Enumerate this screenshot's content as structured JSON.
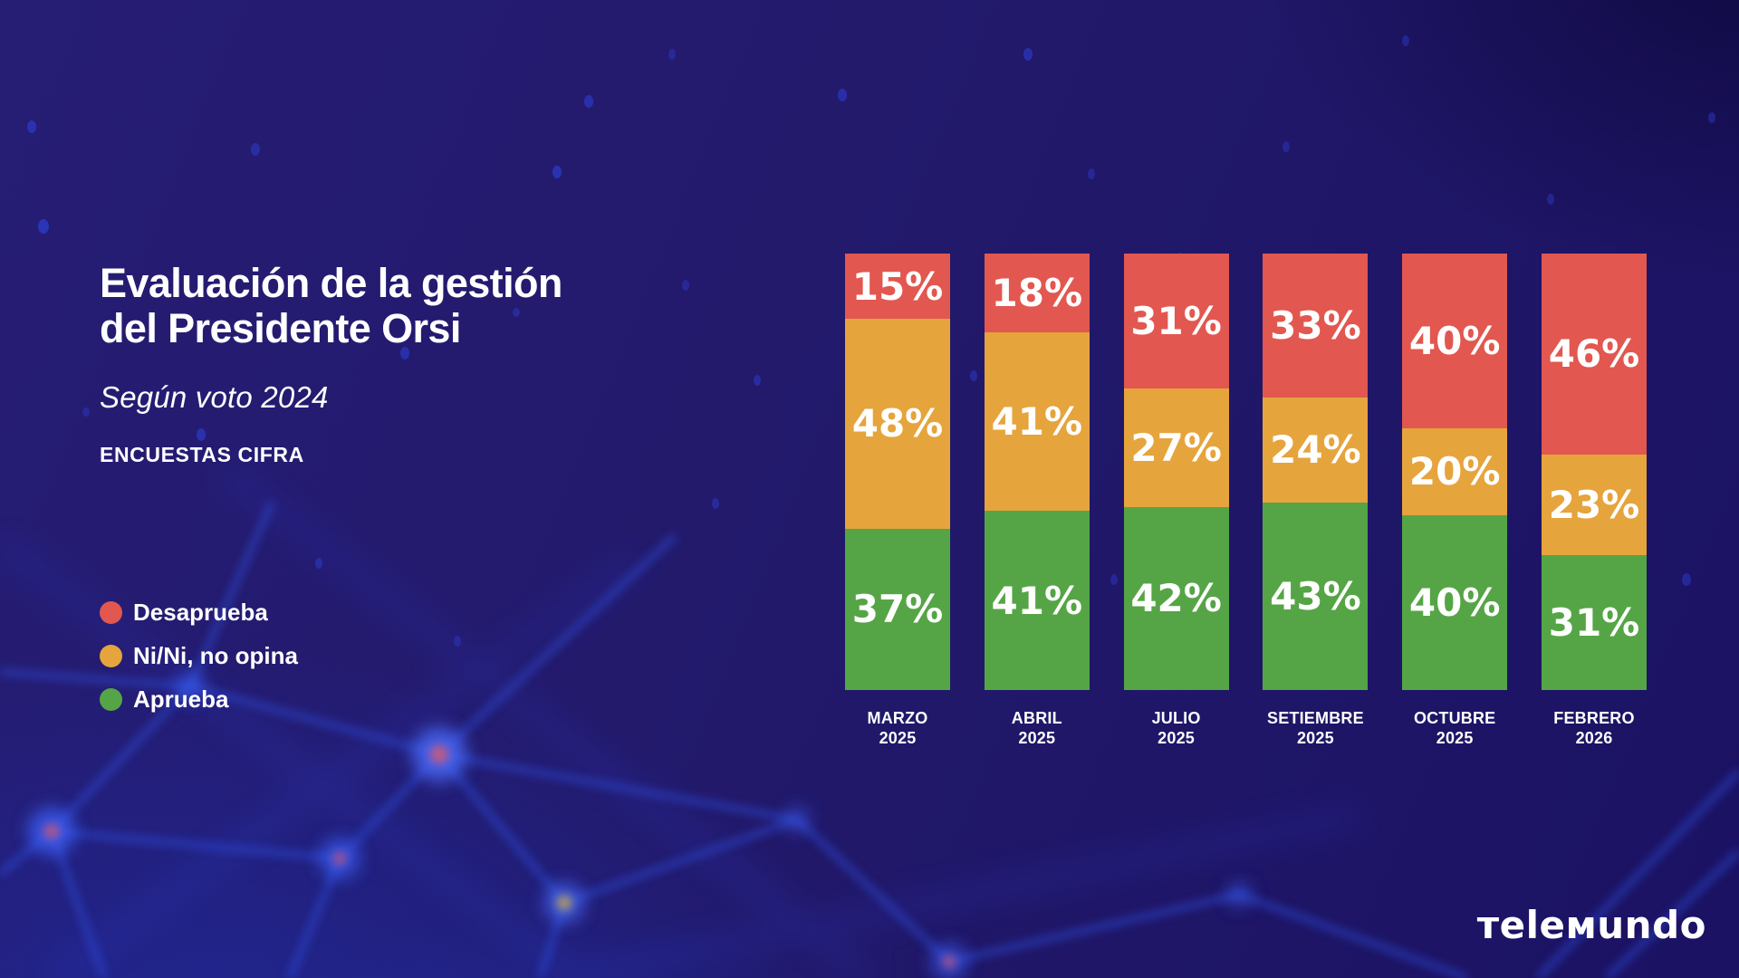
{
  "header": {
    "title_line1": "Evaluación de la gestión",
    "title_line2": "del Presidente Orsi",
    "subtitle": "Según voto 2024",
    "source": "ENCUESTAS CIFRA"
  },
  "legend": {
    "items": [
      {
        "label": "Desaprueba",
        "color": "#E2574F"
      },
      {
        "label": "Ni/Ni, no opina",
        "color": "#E6A43C"
      },
      {
        "label": "Aprueba",
        "color": "#55A546"
      }
    ]
  },
  "brand": {
    "name": "telemundo",
    "wordmark": "тeleмundo"
  },
  "colors": {
    "background": "#221A6B",
    "disapprove_red": "#E2574F",
    "neutral_orange": "#E6A43C",
    "approve_green": "#55A546",
    "text": "#FFFFFF"
  },
  "chart_data": {
    "type": "bar",
    "stacked": true,
    "percent_stack": true,
    "unit": "%",
    "ylim": [
      0,
      100
    ],
    "grid": false,
    "legend_position": "left",
    "segment_order_top_to_bottom": [
      "Desaprueba",
      "Ni/Ni, no opina",
      "Aprueba"
    ],
    "categories": [
      {
        "month": "MARZO",
        "year": "2025"
      },
      {
        "month": "ABRIL",
        "year": "2025"
      },
      {
        "month": "JULIO",
        "year": "2025"
      },
      {
        "month": "SETIEMBRE",
        "year": "2025"
      },
      {
        "month": "OCTUBRE",
        "year": "2025"
      },
      {
        "month": "FEBRERO",
        "year": "2026"
      }
    ],
    "series": [
      {
        "key": "desaprueba",
        "name": "Desaprueba",
        "color": "#E2574F",
        "values": [
          15,
          18,
          31,
          33,
          40,
          46
        ]
      },
      {
        "key": "nini",
        "name": "Ni/Ni, no opina",
        "color": "#E6A43C",
        "values": [
          48,
          41,
          27,
          24,
          20,
          23
        ]
      },
      {
        "key": "aprueba",
        "name": "Aprueba",
        "color": "#55A546",
        "values": [
          37,
          41,
          42,
          43,
          40,
          31
        ]
      }
    ]
  }
}
